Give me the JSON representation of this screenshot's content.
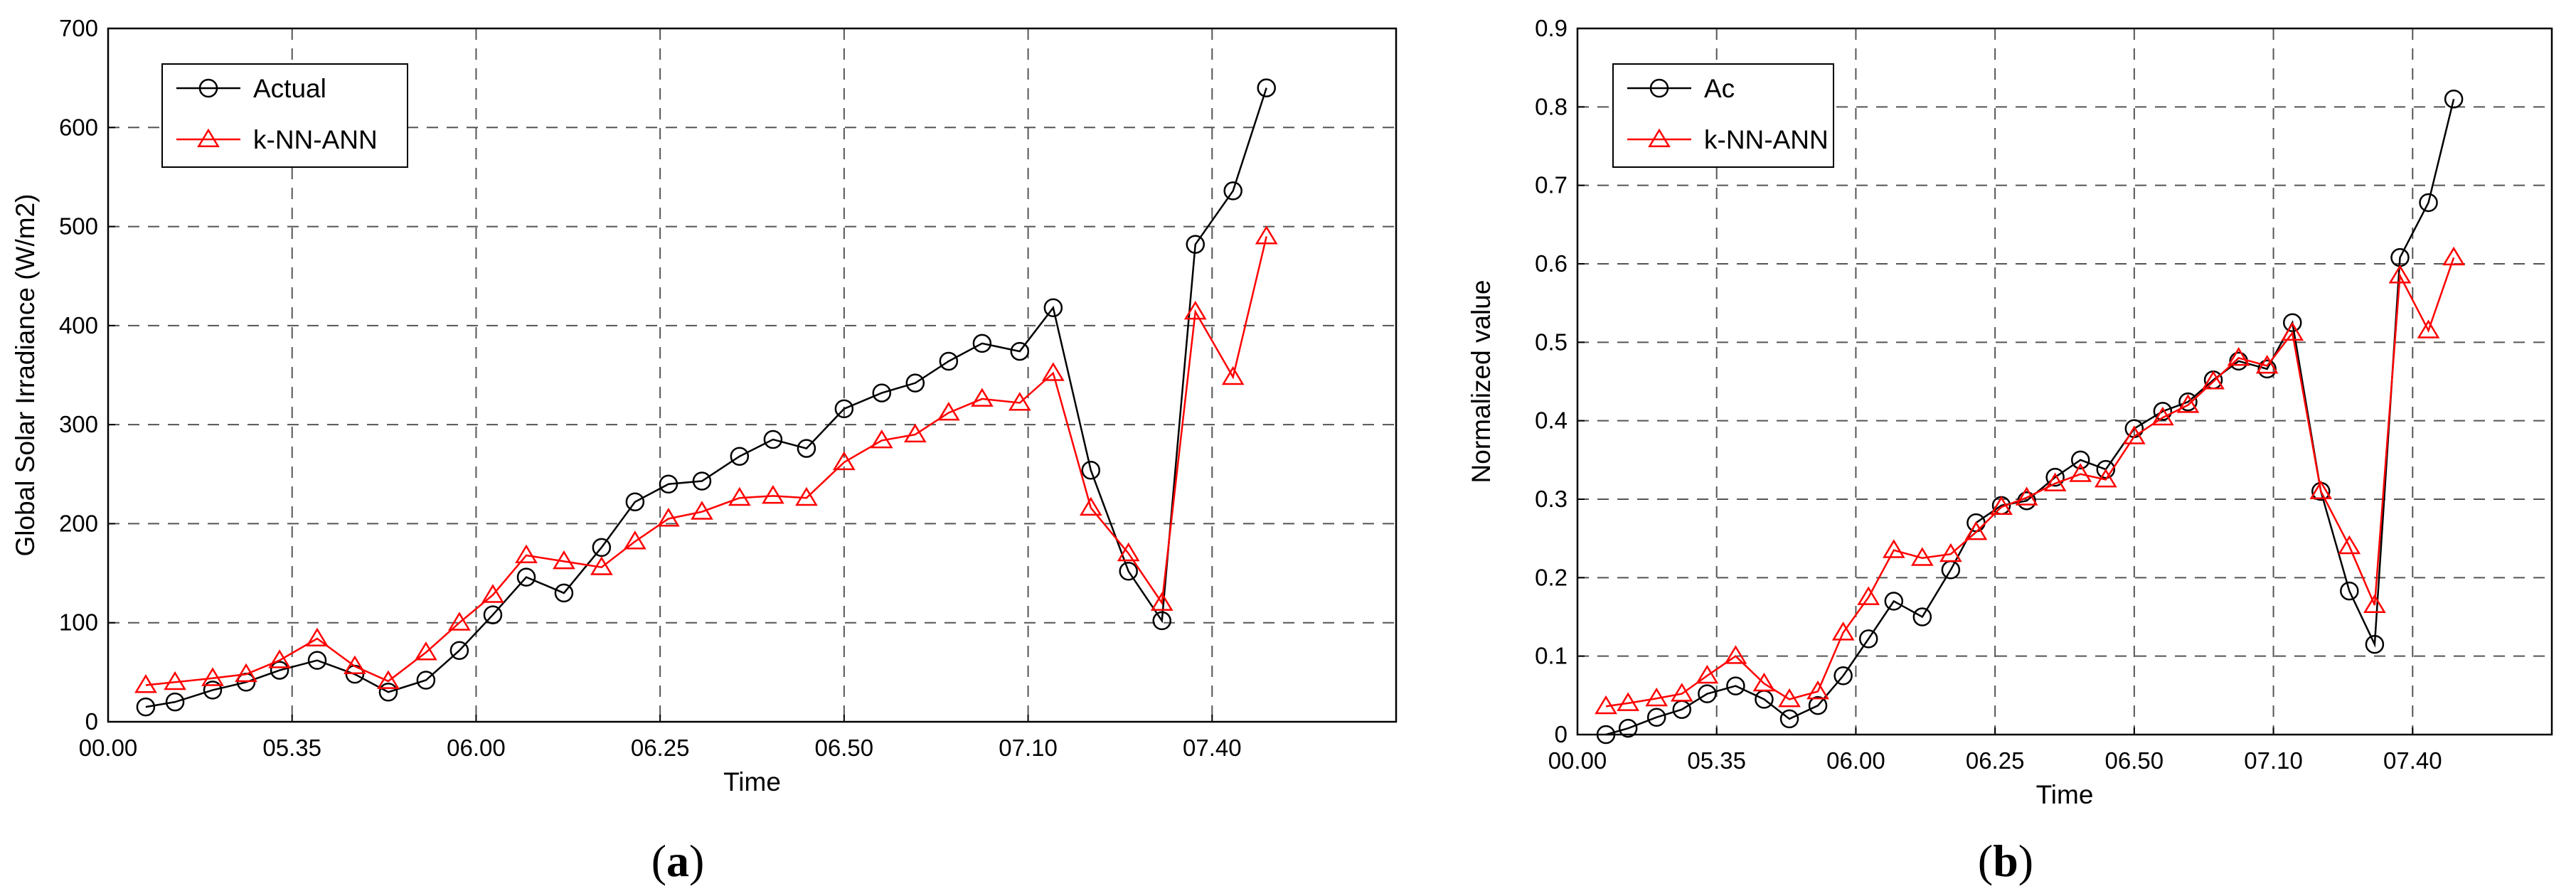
{
  "figure": {
    "panel_a_label": "a",
    "panel_b_label": "b"
  },
  "chart_data": [
    {
      "type": "line",
      "panel": "a",
      "xlabel": "Time",
      "ylabel": "Global Solar Irradiance (W/m2)",
      "ylim": [
        0,
        700
      ],
      "yticks": [
        "0",
        "100",
        "200",
        "300",
        "400",
        "500",
        "600",
        "700"
      ],
      "xticks": [
        "00.00",
        "05.35",
        "06.00",
        "06.25",
        "06.50",
        "07.10",
        "07.40"
      ],
      "xlim": [
        0,
        30.8
      ],
      "grid": true,
      "legend": "top-left",
      "x": [
        0.9,
        1.6,
        2.5,
        3.3,
        4.1,
        5.0,
        5.9,
        6.7,
        7.6,
        8.4,
        9.2,
        10.0,
        10.9,
        11.8,
        12.6,
        13.4,
        14.2,
        15.1,
        15.9,
        16.7,
        17.6,
        18.5,
        19.3,
        20.1,
        20.9,
        21.8,
        22.6,
        23.5,
        24.4,
        25.2,
        26.0,
        26.9,
        27.7,
        28.6
      ],
      "series": [
        {
          "name": "Actual",
          "color": "#000000",
          "marker": "circle",
          "values": [
            15,
            20,
            32,
            40,
            52,
            62,
            48,
            30,
            42,
            72,
            108,
            146,
            130,
            176,
            222,
            240,
            243,
            268,
            285,
            276,
            316,
            332,
            342,
            364,
            382,
            374,
            418,
            254,
            152,
            102,
            482,
            536,
            640,
            null
          ]
        },
        {
          "name": "k-NN-ANN",
          "color": "#ff0000",
          "marker": "triangle",
          "values": [
            37,
            40,
            44,
            48,
            62,
            84,
            56,
            41,
            70,
            100,
            128,
            168,
            162,
            156,
            182,
            205,
            212,
            226,
            228,
            226,
            262,
            284,
            290,
            312,
            326,
            322,
            352,
            216,
            170,
            120,
            414,
            348,
            490,
            null
          ]
        }
      ]
    },
    {
      "type": "line",
      "panel": "b",
      "xlabel": "Time",
      "ylabel": "Normalized value",
      "ylim": [
        0,
        0.9
      ],
      "yticks": [
        "0",
        "0.1",
        "0.2",
        "0.3",
        "0.4",
        "0.5",
        "0.6",
        "0.7",
        "0.8",
        "0.9"
      ],
      "xticks": [
        "00.00",
        "05.35",
        "06.00",
        "06.25",
        "06.50",
        "07.10",
        "07.40"
      ],
      "xlim": [
        0,
        30.8
      ],
      "grid": true,
      "legend": "top-left",
      "x": [
        0.9,
        1.6,
        2.5,
        3.3,
        4.1,
        5.0,
        5.9,
        6.7,
        7.6,
        8.4,
        9.2,
        10.0,
        10.9,
        11.8,
        12.6,
        13.4,
        14.2,
        15.1,
        15.9,
        16.7,
        17.6,
        18.5,
        19.3,
        20.1,
        20.9,
        21.8,
        22.6,
        23.5,
        24.4,
        25.2,
        26.0,
        26.9,
        27.7,
        28.6
      ],
      "series": [
        {
          "name": "Ac",
          "color": "#000000",
          "marker": "circle",
          "values": [
            0.0,
            0.008,
            0.022,
            0.032,
            0.052,
            0.062,
            0.045,
            0.02,
            0.037,
            0.075,
            0.122,
            0.17,
            0.15,
            0.21,
            0.27,
            0.292,
            0.298,
            0.328,
            0.35,
            0.338,
            0.39,
            0.412,
            0.424,
            0.452,
            0.476,
            0.466,
            0.525,
            0.31,
            0.183,
            0.115,
            0.608,
            0.678,
            0.81,
            null
          ]
        },
        {
          "name": "k-NN-ANN",
          "color": "#ff0000",
          "marker": "triangle",
          "values": [
            0.036,
            0.04,
            0.046,
            0.052,
            0.075,
            0.1,
            0.065,
            0.045,
            0.055,
            0.13,
            0.175,
            0.235,
            0.225,
            0.23,
            0.258,
            0.29,
            0.302,
            0.32,
            0.332,
            0.325,
            0.38,
            0.404,
            0.42,
            0.45,
            0.48,
            0.47,
            0.512,
            0.31,
            0.24,
            0.165,
            0.585,
            0.515,
            0.608,
            null
          ]
        }
      ]
    }
  ]
}
